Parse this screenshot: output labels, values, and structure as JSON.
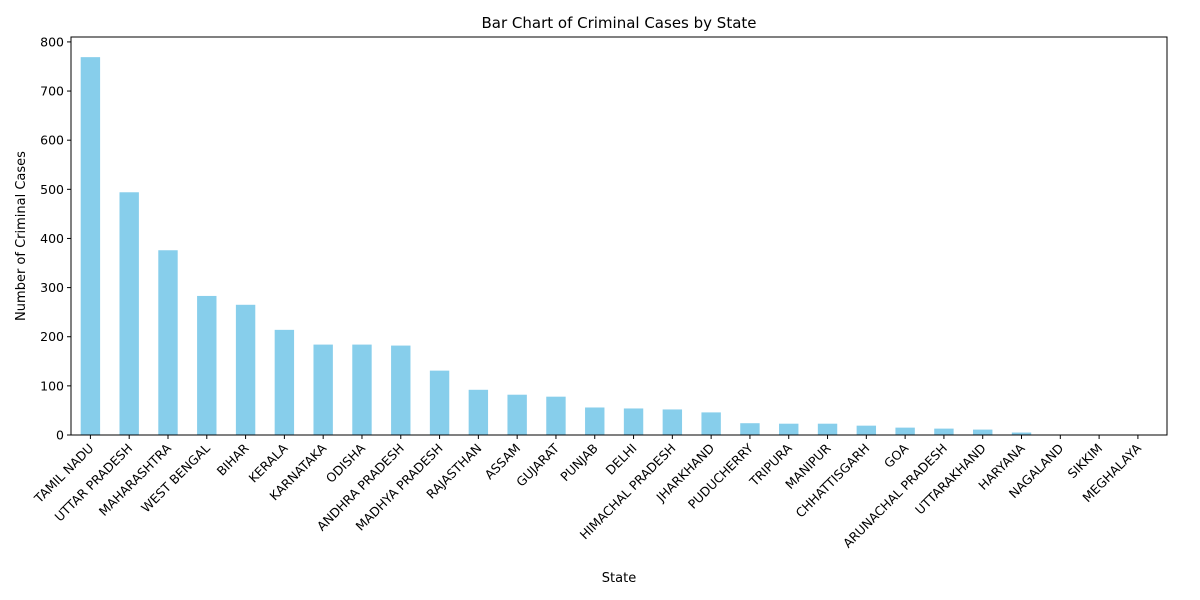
{
  "chart_data": {
    "type": "bar",
    "title": "Bar Chart of Criminal Cases by State",
    "xlabel": "State",
    "ylabel": "Number of Criminal Cases",
    "ylim": [
      0,
      810
    ],
    "yticks": [
      0,
      100,
      200,
      300,
      400,
      500,
      600,
      700,
      800
    ],
    "grid": false,
    "bar_color": "#87CEEB",
    "categories": [
      "TAMIL NADU",
      "UTTAR PRADESH",
      "MAHARASHTRA",
      "WEST BENGAL",
      "BIHAR",
      "KERALA",
      "KARNATAKA",
      "ODISHA",
      "ANDHRA PRADESH",
      "MADHYA PRADESH",
      "RAJASTHAN",
      "ASSAM",
      "GUJARAT",
      "PUNJAB",
      "DELHI",
      "HIMACHAL PRADESH",
      "JHARKHAND",
      "PUDUCHERRY",
      "TRIPURA",
      "MANIPUR",
      "CHHATTISGARH",
      "GOA",
      "ARUNACHAL PRADESH",
      "UTTARAKHAND",
      "HARYANA",
      "NAGALAND",
      "SIKKIM",
      "MEGHALAYA"
    ],
    "values": [
      769,
      494,
      376,
      283,
      265,
      214,
      184,
      184,
      182,
      131,
      92,
      82,
      78,
      56,
      54,
      52,
      46,
      24,
      23,
      23,
      19,
      15,
      13,
      11,
      5,
      1,
      1,
      1
    ]
  }
}
